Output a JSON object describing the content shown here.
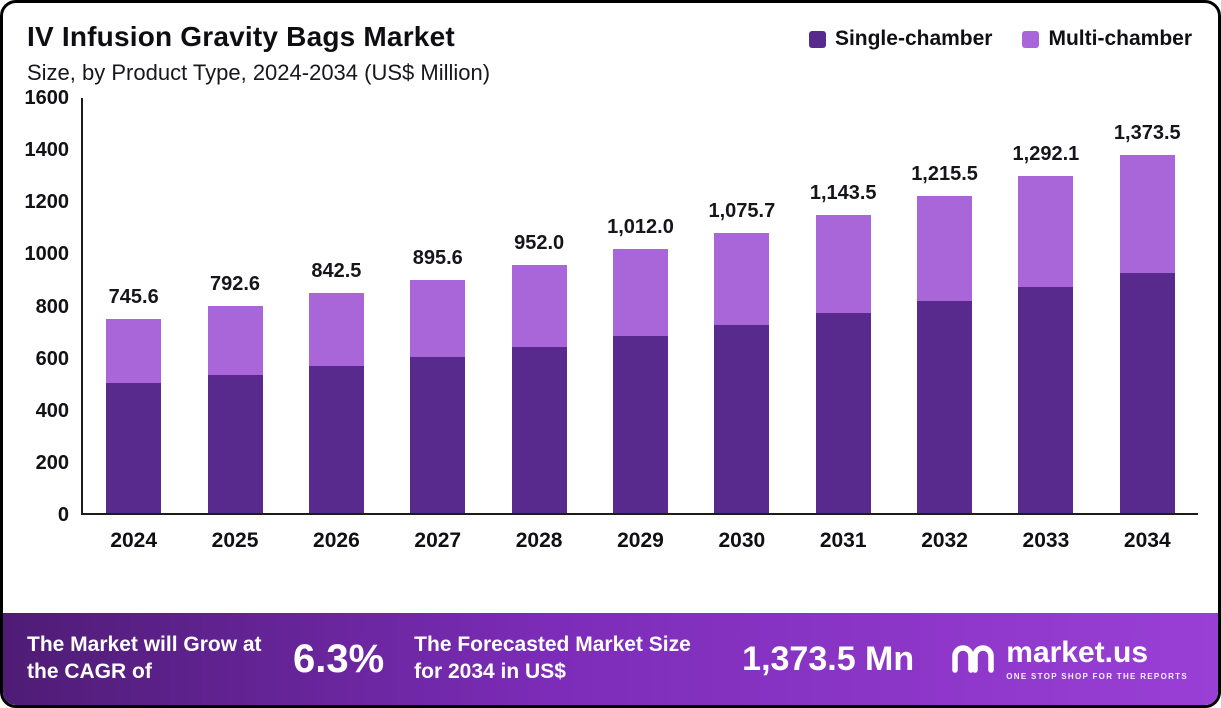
{
  "title": "IV Infusion Gravity Bags Market",
  "subtitle": "Size, by Product Type, 2024-2034 (US$ Million)",
  "legend": [
    {
      "label": "Single-chamber",
      "color": "#582a8e"
    },
    {
      "label": "Multi-chamber",
      "color": "#a866d9"
    }
  ],
  "chart_data": {
    "type": "bar",
    "stacked": true,
    "title": "IV Infusion Gravity Bags Market Size, by Product Type, 2024-2034 (US$ Million)",
    "categories": [
      "2024",
      "2025",
      "2026",
      "2027",
      "2028",
      "2029",
      "2030",
      "2031",
      "2032",
      "2033",
      "2034"
    ],
    "series": [
      {
        "name": "Single-chamber",
        "color": "#582a8e",
        "values": [
          499.6,
          531.0,
          564.5,
          600.1,
          637.8,
          678.0,
          720.7,
          766.1,
          814.4,
          865.7,
          920.2
        ]
      },
      {
        "name": "Multi-chamber",
        "color": "#a866d9",
        "values": [
          246.0,
          261.6,
          278.0,
          295.5,
          314.2,
          334.0,
          355.0,
          377.4,
          401.1,
          426.4,
          453.3
        ]
      }
    ],
    "totals": [
      745.6,
      792.6,
      842.5,
      895.6,
      952.0,
      1012.0,
      1075.7,
      1143.5,
      1215.5,
      1292.1,
      1373.5
    ],
    "total_labels": [
      "745.6",
      "792.6",
      "842.5",
      "895.6",
      "952.0",
      "1,012.0",
      "1,075.7",
      "1,143.5",
      "1,215.5",
      "1,292.1",
      "1,373.5"
    ],
    "xlabel": "",
    "ylabel": "",
    "ylim": [
      0,
      1600
    ],
    "yticks": [
      0,
      200,
      400,
      600,
      800,
      1000,
      1200,
      1400,
      1600
    ],
    "grid": false,
    "legend_position": "top-right"
  },
  "footer": {
    "cagr_text": "The Market will Grow at the CAGR of",
    "cagr_value": "6.3%",
    "forecast_text": "The Forecasted Market Size for 2034 in US$",
    "forecast_value": "1,373.5 Mn",
    "brand": "market.us",
    "brand_tagline": "ONE STOP SHOP FOR THE REPORTS"
  }
}
